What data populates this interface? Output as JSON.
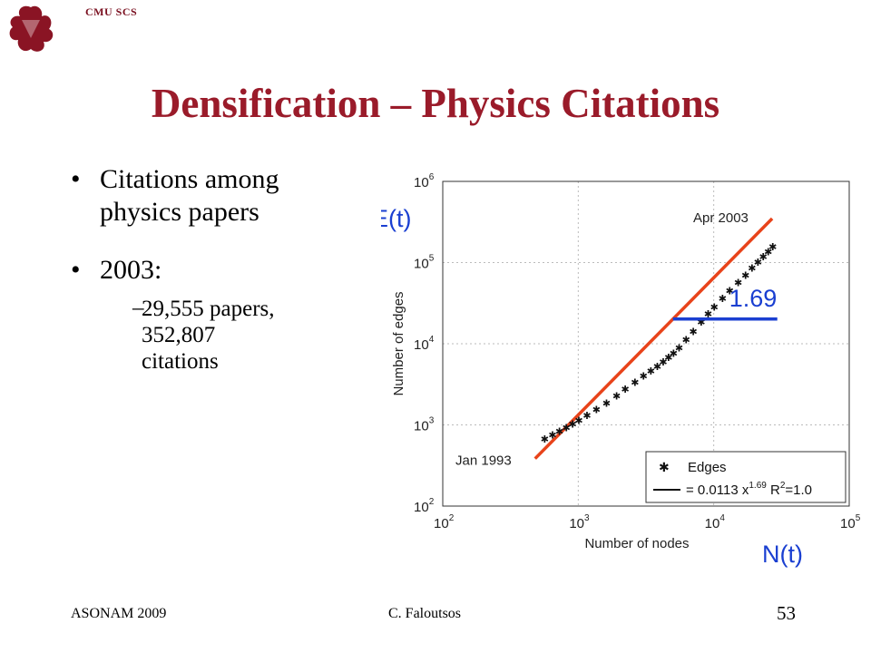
{
  "header": {
    "org": "CMU SCS",
    "logo": "dragon-logo"
  },
  "slide": {
    "title": "Densification – Physics Citations",
    "bullets": [
      {
        "line1": "Citations among",
        "line2": "physics papers"
      },
      {
        "line1": "2003:"
      }
    ],
    "sub_bullet": {
      "dash": "–",
      "line1": "29,555 papers,",
      "line2": "352,807",
      "line3": "citations"
    }
  },
  "footer": {
    "left": "ASONAM 2009",
    "center": "C. Faloutsos",
    "page": "53"
  },
  "chart_data": {
    "type": "scatter",
    "xscale": "log",
    "yscale": "log",
    "xlim": [
      100,
      100000
    ],
    "ylim": [
      100,
      1000000
    ],
    "x_ticks": [
      "10",
      "10",
      "10",
      "10"
    ],
    "x_tick_exps": [
      "2",
      "3",
      "4",
      "5"
    ],
    "y_ticks": [
      "10",
      "10",
      "10",
      "10",
      "10"
    ],
    "y_tick_exps": [
      "2",
      "3",
      "4",
      "5",
      "6"
    ],
    "xlabel": "Number of nodes",
    "ylabel": "Number of edges",
    "annotation_xlabel": "N(t)",
    "annotation_ylabel": "E(t)",
    "slope_label": "1.69",
    "point_labels": {
      "start": "Jan 1993",
      "end": "Apr 2003"
    },
    "legend": {
      "placement": "bottom-right",
      "edges": "Edges",
      "fit_prefix": "= 0.0113 x",
      "fit_exp": "1.69",
      "r2_prefix": " R",
      "r2_exp": "2",
      "r2_suffix": "=1.0"
    },
    "fit": {
      "coef": 0.0113,
      "exponent": 1.69,
      "x_range": [
        480,
        27000
      ]
    },
    "series": [
      {
        "name": "Edges",
        "x": [
          560,
          640,
          720,
          810,
          900,
          1000,
          1150,
          1350,
          1600,
          1900,
          2200,
          2600,
          3000,
          3400,
          3800,
          4200,
          4600,
          5000,
          5500,
          6200,
          7000,
          8000,
          9000,
          10000,
          11500,
          13000,
          15000,
          17000,
          19000,
          21000,
          23000,
          25000,
          27000
        ],
        "y": [
          690,
          770,
          860,
          950,
          1050,
          1170,
          1350,
          1580,
          1900,
          2350,
          2850,
          3450,
          4100,
          4750,
          5400,
          6150,
          6950,
          7800,
          9100,
          11500,
          14500,
          19000,
          24000,
          29000,
          37000,
          46000,
          58000,
          72000,
          88000,
          104000,
          122000,
          140000,
          160000
        ]
      }
    ],
    "colors": {
      "fit_line": "#e8431a",
      "points": "#111111",
      "slope_marker": "#1a3fd1",
      "annotation": "#1a3fd1"
    }
  }
}
